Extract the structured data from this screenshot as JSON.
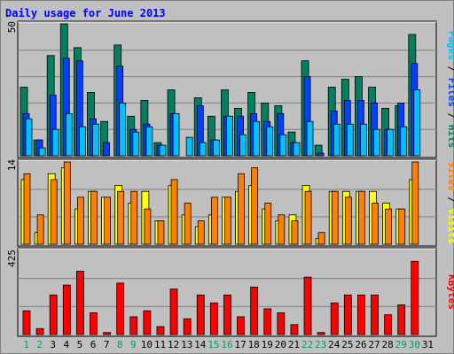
{
  "chart_data": {
    "type": "bar",
    "title": "Daily usage for June 2013",
    "categories": [
      "1",
      "2",
      "3",
      "4",
      "5",
      "6",
      "7",
      "8",
      "9",
      "10",
      "11",
      "12",
      "13",
      "14",
      "15",
      "16",
      "17",
      "18",
      "19",
      "20",
      "21",
      "22",
      "23",
      "24",
      "25",
      "26",
      "27",
      "28",
      "29",
      "30",
      "31"
    ],
    "weekend_days": [
      "1",
      "2",
      "8",
      "9",
      "15",
      "16",
      "22",
      "23",
      "29",
      "30"
    ],
    "panels": [
      {
        "id": "hits",
        "ymax_label": "50",
        "ymax": 50,
        "ylabel_parts": [
          {
            "text": "Pages",
            "color": "#00c0ff"
          },
          {
            "text": " / ",
            "color": "#000000"
          },
          {
            "text": "Files",
            "color": "#0040ff"
          },
          {
            "text": " / ",
            "color": "#000000"
          },
          {
            "text": "Hits",
            "color": "#008060"
          }
        ],
        "series": [
          {
            "name": "Hits",
            "color": "#008060",
            "values": [
              26,
              6,
              38,
              50,
              41,
              24,
              13,
              42,
              15,
              21,
              5,
              25,
              0,
              22,
              15,
              25,
              18,
              24,
              20,
              19,
              9,
              36,
              4,
              26,
              29,
              30,
              26,
              18,
              19,
              46,
              0
            ]
          },
          {
            "name": "Files",
            "color": "#0040ff",
            "values": [
              16,
              6,
              23,
              37,
              36,
              14,
              5,
              34,
              10,
              12,
              4,
              16,
              0,
              19,
              6,
              15,
              15,
              16,
              13,
              16,
              5,
              30,
              1,
              17,
              21,
              21,
              20,
              10,
              20,
              35,
              0
            ]
          },
          {
            "name": "Pages",
            "color": "#00c0ff",
            "values": [
              14,
              3,
              10,
              16,
              11,
              12,
              0,
              20,
              9,
              11,
              4,
              16,
              7,
              5,
              6,
              15,
              8,
              13,
              11,
              8,
              5,
              13,
              0,
              12,
              12,
              12,
              10,
              10,
              11,
              25,
              0
            ]
          }
        ]
      },
      {
        "id": "visits",
        "ymax_label": "14",
        "ymax": 14,
        "ylabel_parts": [
          {
            "text": "Sites",
            "color": "#ff8000"
          },
          {
            "text": " / ",
            "color": "#000000"
          },
          {
            "text": "Visits",
            "color": "#ffff00"
          }
        ],
        "series": [
          {
            "name": "Visits",
            "color": "#ffff00",
            "values": [
              11,
              2,
              12,
              13,
              6,
              9,
              8,
              10,
              7,
              9,
              4,
              10,
              5,
              3,
              5,
              8,
              9,
              10,
              6,
              4,
              5,
              10,
              1,
              9,
              9,
              9,
              9,
              7,
              6,
              11,
              0
            ]
          },
          {
            "name": "Sites",
            "color": "#ff8000",
            "values": [
              12,
              5,
              11,
              14,
              8,
              9,
              8,
              9,
              9,
              6,
              4,
              11,
              7,
              4,
              8,
              8,
              12,
              13,
              7,
              5,
              4,
              9,
              2,
              9,
              8,
              9,
              7,
              6,
              6,
              14,
              0
            ]
          }
        ]
      },
      {
        "id": "kbytes",
        "ymax_label": "425",
        "ymax": 425,
        "ylabel_parts": [
          {
            "text": "KBytes",
            "color": "#ff0000"
          }
        ],
        "series": [
          {
            "name": "KBytes",
            "color": "#ff0000",
            "values": [
              120,
              30,
              200,
              250,
              320,
              110,
              10,
              260,
              90,
              120,
              40,
              230,
              80,
              200,
              160,
              200,
              90,
              240,
              130,
              110,
              50,
              290,
              10,
              160,
              200,
              200,
              200,
              100,
              150,
              370,
              0
            ]
          }
        ]
      }
    ]
  }
}
